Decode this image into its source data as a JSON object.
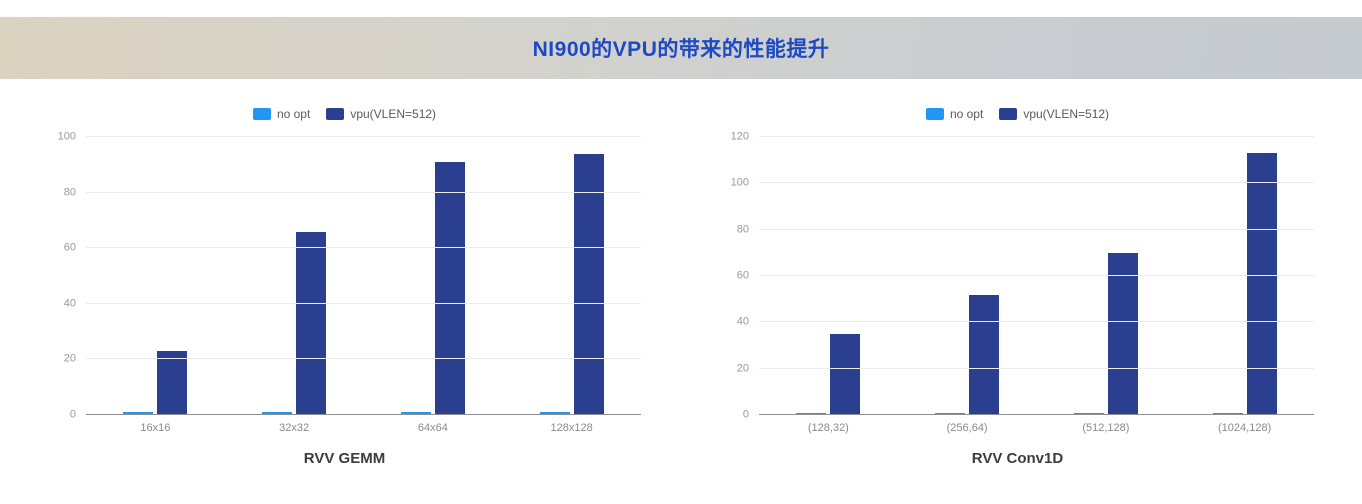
{
  "header": {
    "title": "NI900的VPU的带来的性能提升",
    "title_color": "#1d49c4"
  },
  "chart_data": [
    {
      "type": "bar",
      "title": "RVV GEMM",
      "categories": [
        "16x16",
        "32x32",
        "64x64",
        "128x128"
      ],
      "series": [
        {
          "name": "no opt",
          "color": "#2196f3",
          "values": [
            1,
            1,
            1,
            1
          ]
        },
        {
          "name": "vpu(VLEN=512)",
          "color": "#2a3f90",
          "values": [
            23,
            66,
            91,
            94
          ]
        }
      ],
      "ylim": [
        0,
        100
      ],
      "yticks": [
        0,
        20,
        40,
        60,
        80,
        100
      ],
      "grid": true,
      "legend_position": "top"
    },
    {
      "type": "bar",
      "title": "RVV Conv1D",
      "categories": [
        "(128,32)",
        "(256,64)",
        "(512,128)",
        "(1024,128)"
      ],
      "series": [
        {
          "name": "no opt",
          "color": "#2196f3",
          "values": [
            1,
            1,
            1,
            1
          ]
        },
        {
          "name": "vpu(VLEN=512)",
          "color": "#2a3f90",
          "values": [
            35,
            52,
            70,
            113
          ]
        }
      ],
      "ylim": [
        0,
        120
      ],
      "yticks": [
        0,
        20,
        40,
        60,
        80,
        100,
        120
      ],
      "grid": true,
      "legend_position": "top"
    }
  ]
}
